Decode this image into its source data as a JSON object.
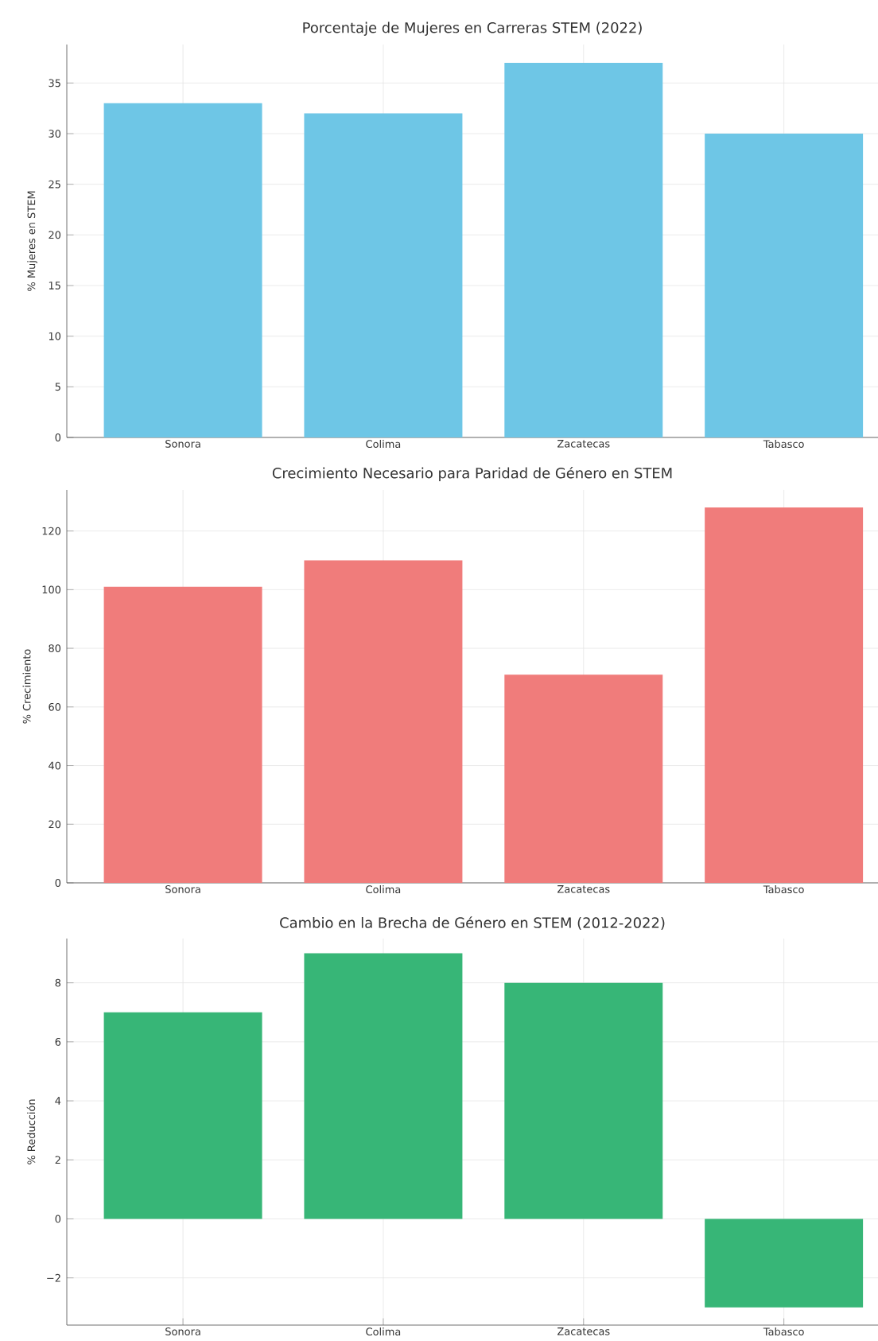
{
  "chart_data": [
    {
      "type": "bar",
      "title": "Porcentaje de Mujeres en Carreras STEM (2022)",
      "ylabel": "% Mujeres en STEM",
      "categories": [
        "Sonora",
        "Colima",
        "Zacatecas",
        "Tabasco"
      ],
      "values": [
        33,
        32,
        37,
        30
      ],
      "color": "#6ec6e6",
      "ylim": [
        0,
        38.8
      ],
      "yticks": [
        0,
        5,
        10,
        15,
        20,
        25,
        30,
        35
      ],
      "grid": true
    },
    {
      "type": "bar",
      "title": "Crecimiento Necesario para Paridad de Género en STEM",
      "ylabel": "% Crecimiento",
      "categories": [
        "Sonora",
        "Colima",
        "Zacatecas",
        "Tabasco"
      ],
      "values": [
        101,
        110,
        71,
        128
      ],
      "color": "#f07c7b",
      "ylim": [
        0,
        134
      ],
      "yticks": [
        0,
        20,
        40,
        60,
        80,
        100,
        120
      ],
      "grid": true
    },
    {
      "type": "bar",
      "title": "Cambio en la Brecha de Género en STEM (2012-2022)",
      "ylabel": "% Reducción",
      "categories": [
        "Sonora",
        "Colima",
        "Zacatecas",
        "Tabasco"
      ],
      "values": [
        7,
        9,
        8,
        -3
      ],
      "color": "#37b677",
      "ylim": [
        -3.6,
        9.5
      ],
      "yticks": [
        {
          "value": -2,
          "label": "−2"
        },
        0,
        2,
        4,
        6,
        8
      ],
      "grid": true
    }
  ]
}
